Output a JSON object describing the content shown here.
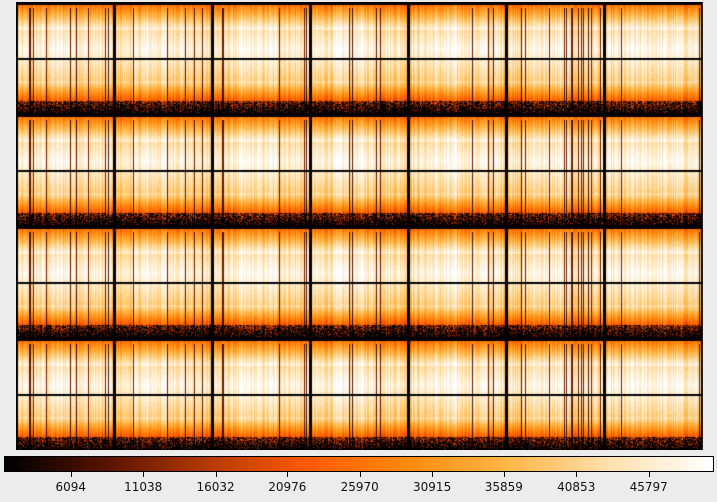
{
  "viewer": {
    "image": {
      "grid_rows": 4,
      "grid_columns": 7,
      "colormap": "heat"
    },
    "colorbar": {
      "colormap": "heat",
      "stops": [
        "#000000",
        "#5a1400",
        "#b43a00",
        "#ff5a00",
        "#ff8c10",
        "#ffb84a",
        "#ffe2b0",
        "#ffffff"
      ],
      "ticks": [
        {
          "label": "6094",
          "frac": 0.094
        },
        {
          "label": "11038",
          "frac": 0.196
        },
        {
          "label": "16032",
          "frac": 0.298
        },
        {
          "label": "20976",
          "frac": 0.399
        },
        {
          "label": "25970",
          "frac": 0.501
        },
        {
          "label": "30915",
          "frac": 0.603
        },
        {
          "label": "35859",
          "frac": 0.704
        },
        {
          "label": "40853",
          "frac": 0.806
        },
        {
          "label": "45797",
          "frac": 0.908
        }
      ]
    }
  }
}
